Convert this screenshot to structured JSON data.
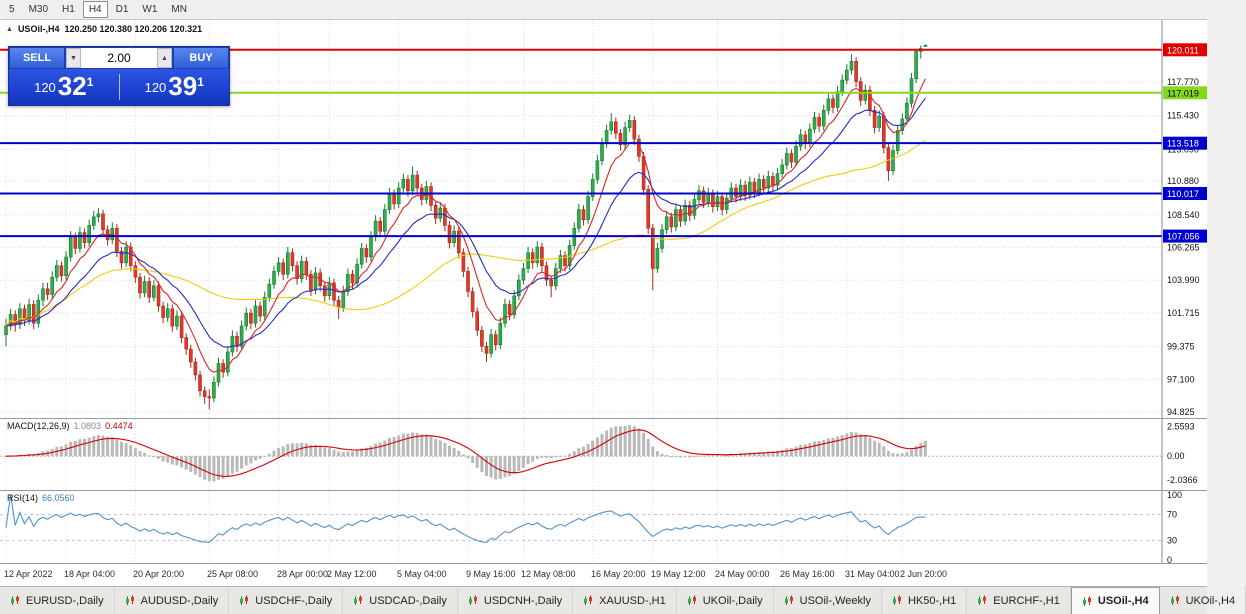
{
  "toolbar": {
    "items": [
      "5",
      "M30",
      "H1",
      "H4",
      "D1",
      "W1",
      "MN"
    ],
    "active": "H4"
  },
  "header": {
    "symbol": "USOil-,H4",
    "ohlc": "120.250 120.380 120.206 120.321"
  },
  "icons": {
    "caret_up": "▲",
    "caret_down": "▼",
    "symbol_marker": "▲"
  },
  "trade_panel": {
    "sell_label": "SELL",
    "buy_label": "BUY",
    "volume": "2.00",
    "bid": {
      "prefix": "120",
      "big": "32",
      "sup": "1"
    },
    "ask": {
      "prefix": "120",
      "big": "39",
      "sup": "1"
    }
  },
  "price_axis": {
    "labels": [
      "117.770",
      "115.430",
      "113.090",
      "110.880",
      "108.540",
      "106.265",
      "103.990",
      "101.715",
      "99.375",
      "97.100",
      "94.825"
    ]
  },
  "levels": [
    {
      "value": 120.011,
      "label": "120.011",
      "color": "#e00000",
      "text": "#ffffff"
    },
    {
      "value": 117.019,
      "label": "117.019",
      "color": "#85d91c",
      "text": "#000000"
    },
    {
      "value": 113.518,
      "label": "113.518",
      "color": "#0000cd",
      "text": "#ffffff"
    },
    {
      "value": 110.017,
      "label": "110.017",
      "color": "#0000cd",
      "text": "#ffffff"
    },
    {
      "value": 107.056,
      "label": "107.056",
      "color": "#0000cd",
      "text": "#ffffff"
    }
  ],
  "macd": {
    "name": "MACD(12,26,9)",
    "value1": "1.0803",
    "value2": "0.4474",
    "axis": [
      {
        "text": "2.5593",
        "v": 2.5593
      },
      {
        "text": "0.00",
        "v": 0
      },
      {
        "text": "-2.0366",
        "v": -2.0366
      }
    ],
    "range": [
      -2.9,
      3.2
    ]
  },
  "rsi": {
    "name": "RSI(14)",
    "value": "66.0560",
    "axis": [
      {
        "text": "100",
        "v": 100
      },
      {
        "text": "70",
        "v": 70
      },
      {
        "text": "30",
        "v": 30
      },
      {
        "text": "0",
        "v": 0
      }
    ],
    "levels": [
      70,
      30
    ]
  },
  "tabs": {
    "active": "USOil-,H4",
    "items": [
      "EURUSD-,Daily",
      "AUDUSD-,Daily",
      "USDCHF-,Daily",
      "USDCAD-,Daily",
      "USDCNH-,Daily",
      "XAUUSD-,H1",
      "UKOil-,Daily",
      "USOil-,Weekly",
      "HK50-,H1",
      "EURCHF-,H1",
      "USOil-,H4",
      "UKOil-,H4"
    ]
  },
  "chart_data": {
    "type": "candlestick",
    "symbol": "USOil-,H4",
    "timeframe": "H4",
    "ohlc_current": {
      "open": "120.250",
      "high": "120.380",
      "low": "120.206",
      "close": "120.321"
    },
    "price_range": [
      94.41,
      122.08
    ],
    "colors": {
      "up": "#2fae4e",
      "up_border": "#157a2e",
      "down": "#e0392a",
      "down_border": "#a8281c",
      "ma_fast": "#e02424",
      "ma_mid": "#2929c8",
      "ma_slow": "#f2cc0f",
      "macd_histogram": "#b9b9b9",
      "macd_signal": "#d40000",
      "rsi_line": "#4f94cd",
      "grid": "#dcdcdc"
    },
    "time_labels": [
      {
        "i": 0,
        "label": "12 Apr 2022"
      },
      {
        "i": 13,
        "label": "18 Apr 04:00"
      },
      {
        "i": 28,
        "label": "20 Apr 20:00"
      },
      {
        "i": 44,
        "label": "25 Apr 08:00"
      },
      {
        "i": 59,
        "label": "28 Apr 00:00"
      },
      {
        "i": 70,
        "label": "2 May 12:00"
      },
      {
        "i": 85,
        "label": "5 May 04:00"
      },
      {
        "i": 100,
        "label": "9 May 16:00"
      },
      {
        "i": 112,
        "label": "12 May 08:00"
      },
      {
        "i": 127,
        "label": "16 May 20:00"
      },
      {
        "i": 140,
        "label": "19 May 12:00"
      },
      {
        "i": 154,
        "label": "24 May 00:00"
      },
      {
        "i": 168,
        "label": "26 May 16:00"
      },
      {
        "i": 182,
        "label": "31 May 04:00"
      },
      {
        "i": 194,
        "label": "2 Jun 20:00"
      }
    ],
    "candles": [
      [
        100.2,
        101.3,
        99.4,
        100.8
      ],
      [
        100.8,
        102.0,
        100.5,
        101.6
      ],
      [
        101.6,
        101.9,
        100.4,
        100.9
      ],
      [
        100.9,
        102.4,
        100.6,
        102.0
      ],
      [
        102.0,
        102.3,
        100.8,
        101.2
      ],
      [
        101.2,
        102.7,
        100.9,
        102.3
      ],
      [
        102.3,
        102.6,
        100.6,
        101.0
      ],
      [
        101.0,
        103.0,
        100.7,
        102.6
      ],
      [
        102.6,
        103.8,
        102.2,
        103.4
      ],
      [
        103.4,
        103.8,
        102.6,
        103.0
      ],
      [
        103.0,
        104.6,
        102.7,
        104.2
      ],
      [
        104.2,
        105.4,
        103.9,
        105.0
      ],
      [
        105.0,
        105.3,
        103.9,
        104.3
      ],
      [
        104.3,
        106.0,
        104.0,
        105.6
      ],
      [
        105.6,
        107.4,
        105.3,
        107.0
      ],
      [
        107.0,
        107.3,
        105.8,
        106.2
      ],
      [
        106.2,
        107.7,
        105.9,
        107.3
      ],
      [
        107.3,
        107.6,
        106.2,
        106.6
      ],
      [
        106.6,
        108.2,
        106.3,
        107.8
      ],
      [
        107.8,
        108.8,
        107.5,
        108.4
      ],
      [
        108.4,
        109.0,
        108.0,
        108.6
      ],
      [
        108.6,
        108.9,
        107.1,
        107.5
      ],
      [
        107.5,
        107.8,
        106.4,
        106.8
      ],
      [
        106.8,
        108.0,
        106.5,
        107.6
      ],
      [
        107.6,
        107.9,
        105.6,
        106.0
      ],
      [
        106.0,
        106.3,
        104.8,
        105.2
      ],
      [
        105.2,
        106.7,
        104.9,
        106.3
      ],
      [
        106.3,
        106.6,
        104.6,
        105.0
      ],
      [
        105.0,
        105.3,
        103.8,
        104.2
      ],
      [
        104.2,
        104.5,
        102.7,
        103.1
      ],
      [
        103.1,
        104.3,
        102.8,
        103.9
      ],
      [
        103.9,
        104.2,
        102.4,
        102.8
      ],
      [
        102.8,
        104.0,
        102.5,
        103.6
      ],
      [
        103.6,
        103.9,
        101.8,
        102.2
      ],
      [
        102.2,
        102.5,
        101.0,
        101.4
      ],
      [
        101.4,
        102.4,
        101.1,
        102.0
      ],
      [
        102.0,
        102.3,
        100.4,
        100.8
      ],
      [
        100.8,
        101.9,
        100.5,
        101.5
      ],
      [
        101.5,
        101.8,
        99.6,
        100.0
      ],
      [
        100.0,
        100.3,
        98.8,
        99.2
      ],
      [
        99.2,
        99.5,
        97.9,
        98.3
      ],
      [
        98.3,
        98.6,
        97.0,
        97.4
      ],
      [
        97.4,
        97.7,
        95.9,
        96.3
      ],
      [
        96.3,
        96.6,
        95.4,
        95.9
      ],
      [
        95.9,
        96.4,
        95.0,
        95.8
      ],
      [
        95.8,
        97.3,
        95.5,
        96.9
      ],
      [
        96.9,
        98.6,
        96.6,
        98.2
      ],
      [
        98.2,
        98.5,
        97.2,
        97.6
      ],
      [
        97.6,
        99.4,
        97.3,
        99.0
      ],
      [
        99.0,
        100.5,
        98.7,
        100.1
      ],
      [
        100.1,
        100.4,
        99.0,
        99.4
      ],
      [
        99.4,
        101.2,
        99.1,
        100.8
      ],
      [
        100.8,
        102.1,
        100.5,
        101.7
      ],
      [
        101.7,
        102.0,
        100.6,
        101.0
      ],
      [
        101.0,
        102.6,
        100.7,
        102.2
      ],
      [
        102.2,
        102.5,
        101.1,
        101.5
      ],
      [
        101.5,
        103.2,
        101.2,
        102.8
      ],
      [
        102.8,
        104.1,
        102.5,
        103.7
      ],
      [
        103.7,
        105.0,
        103.4,
        104.6
      ],
      [
        104.6,
        105.6,
        104.3,
        105.2
      ],
      [
        105.2,
        105.5,
        104.0,
        104.4
      ],
      [
        104.4,
        106.3,
        104.1,
        105.9
      ],
      [
        105.9,
        106.2,
        104.6,
        105.0
      ],
      [
        105.0,
        105.3,
        103.7,
        104.1
      ],
      [
        104.1,
        105.7,
        103.8,
        105.3
      ],
      [
        105.3,
        105.6,
        104.0,
        104.4
      ],
      [
        104.4,
        104.7,
        102.9,
        103.3
      ],
      [
        103.3,
        104.9,
        103.0,
        104.5
      ],
      [
        104.5,
        104.8,
        103.2,
        103.6
      ],
      [
        103.6,
        103.9,
        102.5,
        102.9
      ],
      [
        102.9,
        104.2,
        102.6,
        103.8
      ],
      [
        103.8,
        104.1,
        102.2,
        102.6
      ],
      [
        102.6,
        102.9,
        101.3,
        102.1
      ],
      [
        102.1,
        103.6,
        101.8,
        103.2
      ],
      [
        103.2,
        104.8,
        102.9,
        104.4
      ],
      [
        104.4,
        104.7,
        103.4,
        103.8
      ],
      [
        103.8,
        105.5,
        103.5,
        105.1
      ],
      [
        105.1,
        106.6,
        104.8,
        106.2
      ],
      [
        106.2,
        106.5,
        105.2,
        105.6
      ],
      [
        105.6,
        107.4,
        105.3,
        107.0
      ],
      [
        107.0,
        108.5,
        106.7,
        108.1
      ],
      [
        108.1,
        108.4,
        107.0,
        107.4
      ],
      [
        107.4,
        109.3,
        107.1,
        108.9
      ],
      [
        108.9,
        110.4,
        108.6,
        110.0
      ],
      [
        110.0,
        110.3,
        108.9,
        109.3
      ],
      [
        109.3,
        110.8,
        109.0,
        110.4
      ],
      [
        110.4,
        111.4,
        110.1,
        111.0
      ],
      [
        111.0,
        111.3,
        109.8,
        110.2
      ],
      [
        110.2,
        111.9,
        109.9,
        111.3
      ],
      [
        111.3,
        111.6,
        110.0,
        110.4
      ],
      [
        110.4,
        110.7,
        109.2,
        109.6
      ],
      [
        109.6,
        110.9,
        109.3,
        110.5
      ],
      [
        110.5,
        110.8,
        108.8,
        109.2
      ],
      [
        109.2,
        109.5,
        107.9,
        108.3
      ],
      [
        108.3,
        109.4,
        108.0,
        109.0
      ],
      [
        109.0,
        109.3,
        107.4,
        107.8
      ],
      [
        107.8,
        108.1,
        106.2,
        106.6
      ],
      [
        106.6,
        107.8,
        106.3,
        107.4
      ],
      [
        107.4,
        107.7,
        105.5,
        105.9
      ],
      [
        105.9,
        106.2,
        104.2,
        104.6
      ],
      [
        104.6,
        104.9,
        102.8,
        103.2
      ],
      [
        103.2,
        103.5,
        101.4,
        101.8
      ],
      [
        101.8,
        102.1,
        100.1,
        100.5
      ],
      [
        100.5,
        100.8,
        99.0,
        99.4
      ],
      [
        99.4,
        99.7,
        98.3,
        98.9
      ],
      [
        98.9,
        100.6,
        98.6,
        100.2
      ],
      [
        100.2,
        100.5,
        99.1,
        99.5
      ],
      [
        99.5,
        101.4,
        99.2,
        101.0
      ],
      [
        101.0,
        102.7,
        100.7,
        102.3
      ],
      [
        102.3,
        102.6,
        101.2,
        101.6
      ],
      [
        101.6,
        103.3,
        101.3,
        102.9
      ],
      [
        102.9,
        104.4,
        102.6,
        104.0
      ],
      [
        104.0,
        105.2,
        103.7,
        104.8
      ],
      [
        104.8,
        106.3,
        104.5,
        105.9
      ],
      [
        105.9,
        106.2,
        104.8,
        105.2
      ],
      [
        105.2,
        106.7,
        104.9,
        106.3
      ],
      [
        106.3,
        106.6,
        104.6,
        105.0
      ],
      [
        105.0,
        105.3,
        103.6,
        104.0
      ],
      [
        104.0,
        104.3,
        102.8,
        103.6
      ],
      [
        103.6,
        105.2,
        103.3,
        104.8
      ],
      [
        104.8,
        106.1,
        104.5,
        105.7
      ],
      [
        105.7,
        106.0,
        104.6,
        105.0
      ],
      [
        105.0,
        106.8,
        104.7,
        106.4
      ],
      [
        106.4,
        108.0,
        106.1,
        107.6
      ],
      [
        107.6,
        109.3,
        107.3,
        108.9
      ],
      [
        108.9,
        109.2,
        107.8,
        108.2
      ],
      [
        108.2,
        110.2,
        107.9,
        109.8
      ],
      [
        109.8,
        111.4,
        109.5,
        111.0
      ],
      [
        111.0,
        112.7,
        110.7,
        112.3
      ],
      [
        112.3,
        113.9,
        112.0,
        113.5
      ],
      [
        113.5,
        114.8,
        113.2,
        114.4
      ],
      [
        114.4,
        115.6,
        114.1,
        115.0
      ],
      [
        115.0,
        115.3,
        113.8,
        114.2
      ],
      [
        114.2,
        114.5,
        113.0,
        113.4
      ],
      [
        113.4,
        115.0,
        113.1,
        114.6
      ],
      [
        114.6,
        115.5,
        114.3,
        115.1
      ],
      [
        115.1,
        115.4,
        113.4,
        113.8
      ],
      [
        113.8,
        114.1,
        112.2,
        112.6
      ],
      [
        112.6,
        112.9,
        109.9,
        110.3
      ],
      [
        110.3,
        110.6,
        107.2,
        107.6
      ],
      [
        107.6,
        107.9,
        103.3,
        104.8
      ],
      [
        104.8,
        106.6,
        104.5,
        106.2
      ],
      [
        106.2,
        107.9,
        105.9,
        107.5
      ],
      [
        107.5,
        108.8,
        107.2,
        108.4
      ],
      [
        108.4,
        108.7,
        107.3,
        107.7
      ],
      [
        107.7,
        109.3,
        107.4,
        108.9
      ],
      [
        108.9,
        109.2,
        107.7,
        108.1
      ],
      [
        108.1,
        109.6,
        107.8,
        109.2
      ],
      [
        109.2,
        109.5,
        108.1,
        108.5
      ],
      [
        108.5,
        110.0,
        108.2,
        109.6
      ],
      [
        109.6,
        110.6,
        109.3,
        110.2
      ],
      [
        110.2,
        110.5,
        109.0,
        109.4
      ],
      [
        109.4,
        110.4,
        109.1,
        110.0
      ],
      [
        110.0,
        110.3,
        108.7,
        109.1
      ],
      [
        109.1,
        110.2,
        108.8,
        109.8
      ],
      [
        109.8,
        110.1,
        108.5,
        108.9
      ],
      [
        108.9,
        110.1,
        108.6,
        109.7
      ],
      [
        109.7,
        110.8,
        109.4,
        110.4
      ],
      [
        110.4,
        110.7,
        109.4,
        109.8
      ],
      [
        109.8,
        111.0,
        109.5,
        110.6
      ],
      [
        110.6,
        110.9,
        109.5,
        109.9
      ],
      [
        109.9,
        111.2,
        109.6,
        110.8
      ],
      [
        110.8,
        111.1,
        109.7,
        110.1
      ],
      [
        110.1,
        111.4,
        109.8,
        111.0
      ],
      [
        111.0,
        111.3,
        110.0,
        110.4
      ],
      [
        110.4,
        111.6,
        110.1,
        111.2
      ],
      [
        111.2,
        111.5,
        110.2,
        110.6
      ],
      [
        110.6,
        111.8,
        110.3,
        111.4
      ],
      [
        111.4,
        112.4,
        111.1,
        112.0
      ],
      [
        112.0,
        113.2,
        111.7,
        112.8
      ],
      [
        112.8,
        113.1,
        111.8,
        112.2
      ],
      [
        112.2,
        113.7,
        111.9,
        113.3
      ],
      [
        113.3,
        114.5,
        113.0,
        114.1
      ],
      [
        114.1,
        114.4,
        113.1,
        113.5
      ],
      [
        113.5,
        114.9,
        113.2,
        114.5
      ],
      [
        114.5,
        115.7,
        114.2,
        115.3
      ],
      [
        115.3,
        115.6,
        114.3,
        114.7
      ],
      [
        114.7,
        116.2,
        114.4,
        115.8
      ],
      [
        115.8,
        117.0,
        115.5,
        116.6
      ],
      [
        116.6,
        116.9,
        115.6,
        116.0
      ],
      [
        116.0,
        117.5,
        115.7,
        117.1
      ],
      [
        117.1,
        118.3,
        116.8,
        117.9
      ],
      [
        117.9,
        119.0,
        117.6,
        118.6
      ],
      [
        118.6,
        119.7,
        118.3,
        119.2
      ],
      [
        119.2,
        119.5,
        117.4,
        117.8
      ],
      [
        117.8,
        118.1,
        116.1,
        116.5
      ],
      [
        116.5,
        117.6,
        116.2,
        117.2
      ],
      [
        117.2,
        117.5,
        115.4,
        115.8
      ],
      [
        115.8,
        116.1,
        114.2,
        114.6
      ],
      [
        114.6,
        115.8,
        114.3,
        115.4
      ],
      [
        115.4,
        115.7,
        112.8,
        113.2
      ],
      [
        113.2,
        113.5,
        110.9,
        111.6
      ],
      [
        111.6,
        113.4,
        111.3,
        113.0
      ],
      [
        113.0,
        114.8,
        112.7,
        114.4
      ],
      [
        114.4,
        115.6,
        114.1,
        115.2
      ],
      [
        115.2,
        116.7,
        114.9,
        116.3
      ],
      [
        116.3,
        118.4,
        116.0,
        118.0
      ],
      [
        118.0,
        120.1,
        117.7,
        119.9
      ],
      [
        119.9,
        120.3,
        119.4,
        120.1
      ],
      [
        120.25,
        120.38,
        120.206,
        120.321
      ]
    ]
  }
}
